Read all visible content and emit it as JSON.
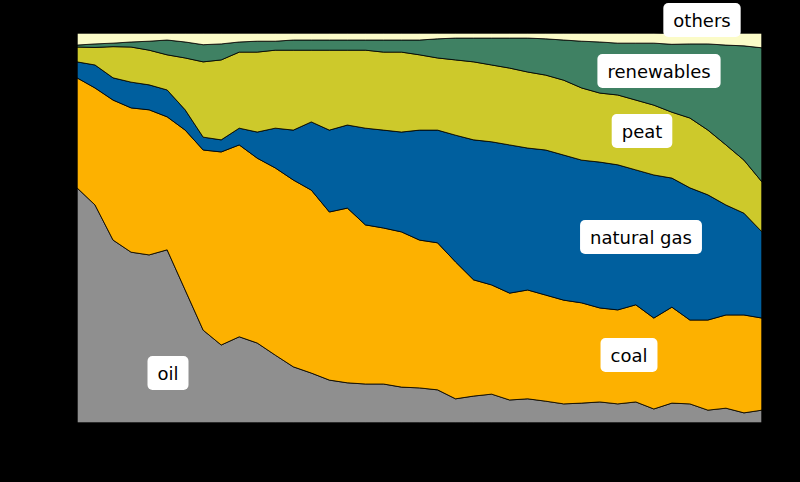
{
  "chart_data": {
    "type": "area",
    "stacked": true,
    "tick_labels": false,
    "categories": [
      null,
      null,
      null,
      null,
      null,
      null,
      null,
      null,
      null,
      null,
      null,
      null,
      null,
      null,
      null,
      null,
      null,
      null,
      null,
      null,
      null,
      null,
      null,
      null,
      null,
      null,
      null,
      null,
      null,
      null,
      null,
      null,
      null,
      null,
      null,
      null,
      null,
      null,
      null
    ],
    "ylim": [
      0,
      100
    ],
    "series": [
      {
        "name": "oil",
        "color": "#8f8f8f",
        "values": [
          60.3,
          55.9,
          46.9,
          43.8,
          43.1,
          44.4,
          34.1,
          23.8,
          20.0,
          22.1,
          20.5,
          17.4,
          14.4,
          12.8,
          11.0,
          10.3,
          10.0,
          10.0,
          9.2,
          9.0,
          8.5,
          6.2,
          6.9,
          7.4,
          5.9,
          6.2,
          5.6,
          4.9,
          5.1,
          5.4,
          4.9,
          5.4,
          3.6,
          5.1,
          4.9,
          3.3,
          3.8,
          2.6,
          3.3
        ]
      },
      {
        "name": "coal",
        "color": "#fdb100",
        "values": [
          28.2,
          30.0,
          35.9,
          37.0,
          37.2,
          34.1,
          41.0,
          46.2,
          49.5,
          49.2,
          47.4,
          48.0,
          47.9,
          46.9,
          43.1,
          44.8,
          40.8,
          40.0,
          39.8,
          37.9,
          37.7,
          35.1,
          29.8,
          28.0,
          27.4,
          27.9,
          27.2,
          26.6,
          25.7,
          24.1,
          24.1,
          24.9,
          23.3,
          24.6,
          21.5,
          23.1,
          23.9,
          25.1,
          23.6
        ]
      },
      {
        "name": "natural gas",
        "color": "#005f9e",
        "values": [
          4.1,
          5.9,
          5.7,
          6.6,
          6.4,
          6.9,
          5.2,
          3.3,
          3.1,
          4.3,
          6.7,
          10.2,
          12.8,
          17.5,
          21.0,
          21.3,
          24.8,
          25.1,
          25.6,
          28.2,
          28.9,
          32.5,
          35.9,
          36.7,
          38.0,
          36.4,
          37.2,
          37.2,
          36.6,
          37.4,
          37.2,
          34.6,
          36.7,
          33.1,
          33.9,
          32.1,
          28.2,
          26.1,
          22.1
        ]
      },
      {
        "name": "peat",
        "color": "#cdc92b",
        "values": [
          3.8,
          4.5,
          8.0,
          9.0,
          8.9,
          9.0,
          13.3,
          19.3,
          20.5,
          19.5,
          20.5,
          20.0,
          20.5,
          18.4,
          20.5,
          19.2,
          20.0,
          20.0,
          20.5,
          19.3,
          18.5,
          19.3,
          20.0,
          19.7,
          19.7,
          19.5,
          19.2,
          19.2,
          18.5,
          17.7,
          17.9,
          17.9,
          17.9,
          16.9,
          17.9,
          16.6,
          15.4,
          13.6,
          12.8
        ]
      },
      {
        "name": "renewables",
        "color": "#3f8163",
        "values": [
          0.5,
          0.9,
          0.9,
          1.3,
          2.3,
          3.8,
          4.1,
          4.4,
          4.1,
          2.6,
          2.8,
          2.3,
          2.6,
          2.6,
          2.6,
          2.6,
          2.6,
          3.1,
          3.1,
          3.8,
          4.9,
          5.6,
          6.1,
          6.9,
          7.7,
          8.7,
          9.3,
          10.3,
          12.0,
          13.1,
          13.3,
          14.6,
          15.9,
          17.4,
          19.0,
          22.1,
          25.6,
          29.3,
          34.4
        ]
      },
      {
        "name": "others",
        "color": "#fbfbc8",
        "values": [
          3.1,
          2.8,
          2.6,
          2.3,
          2.1,
          1.8,
          2.3,
          3.0,
          2.8,
          2.3,
          2.1,
          2.1,
          1.8,
          1.8,
          1.8,
          1.8,
          1.8,
          1.8,
          1.8,
          1.8,
          1.5,
          1.3,
          1.3,
          1.3,
          1.3,
          1.3,
          1.5,
          1.8,
          2.1,
          2.3,
          2.6,
          2.6,
          2.6,
          2.8,
          2.8,
          2.8,
          3.1,
          3.3,
          3.8
        ]
      }
    ]
  }
}
